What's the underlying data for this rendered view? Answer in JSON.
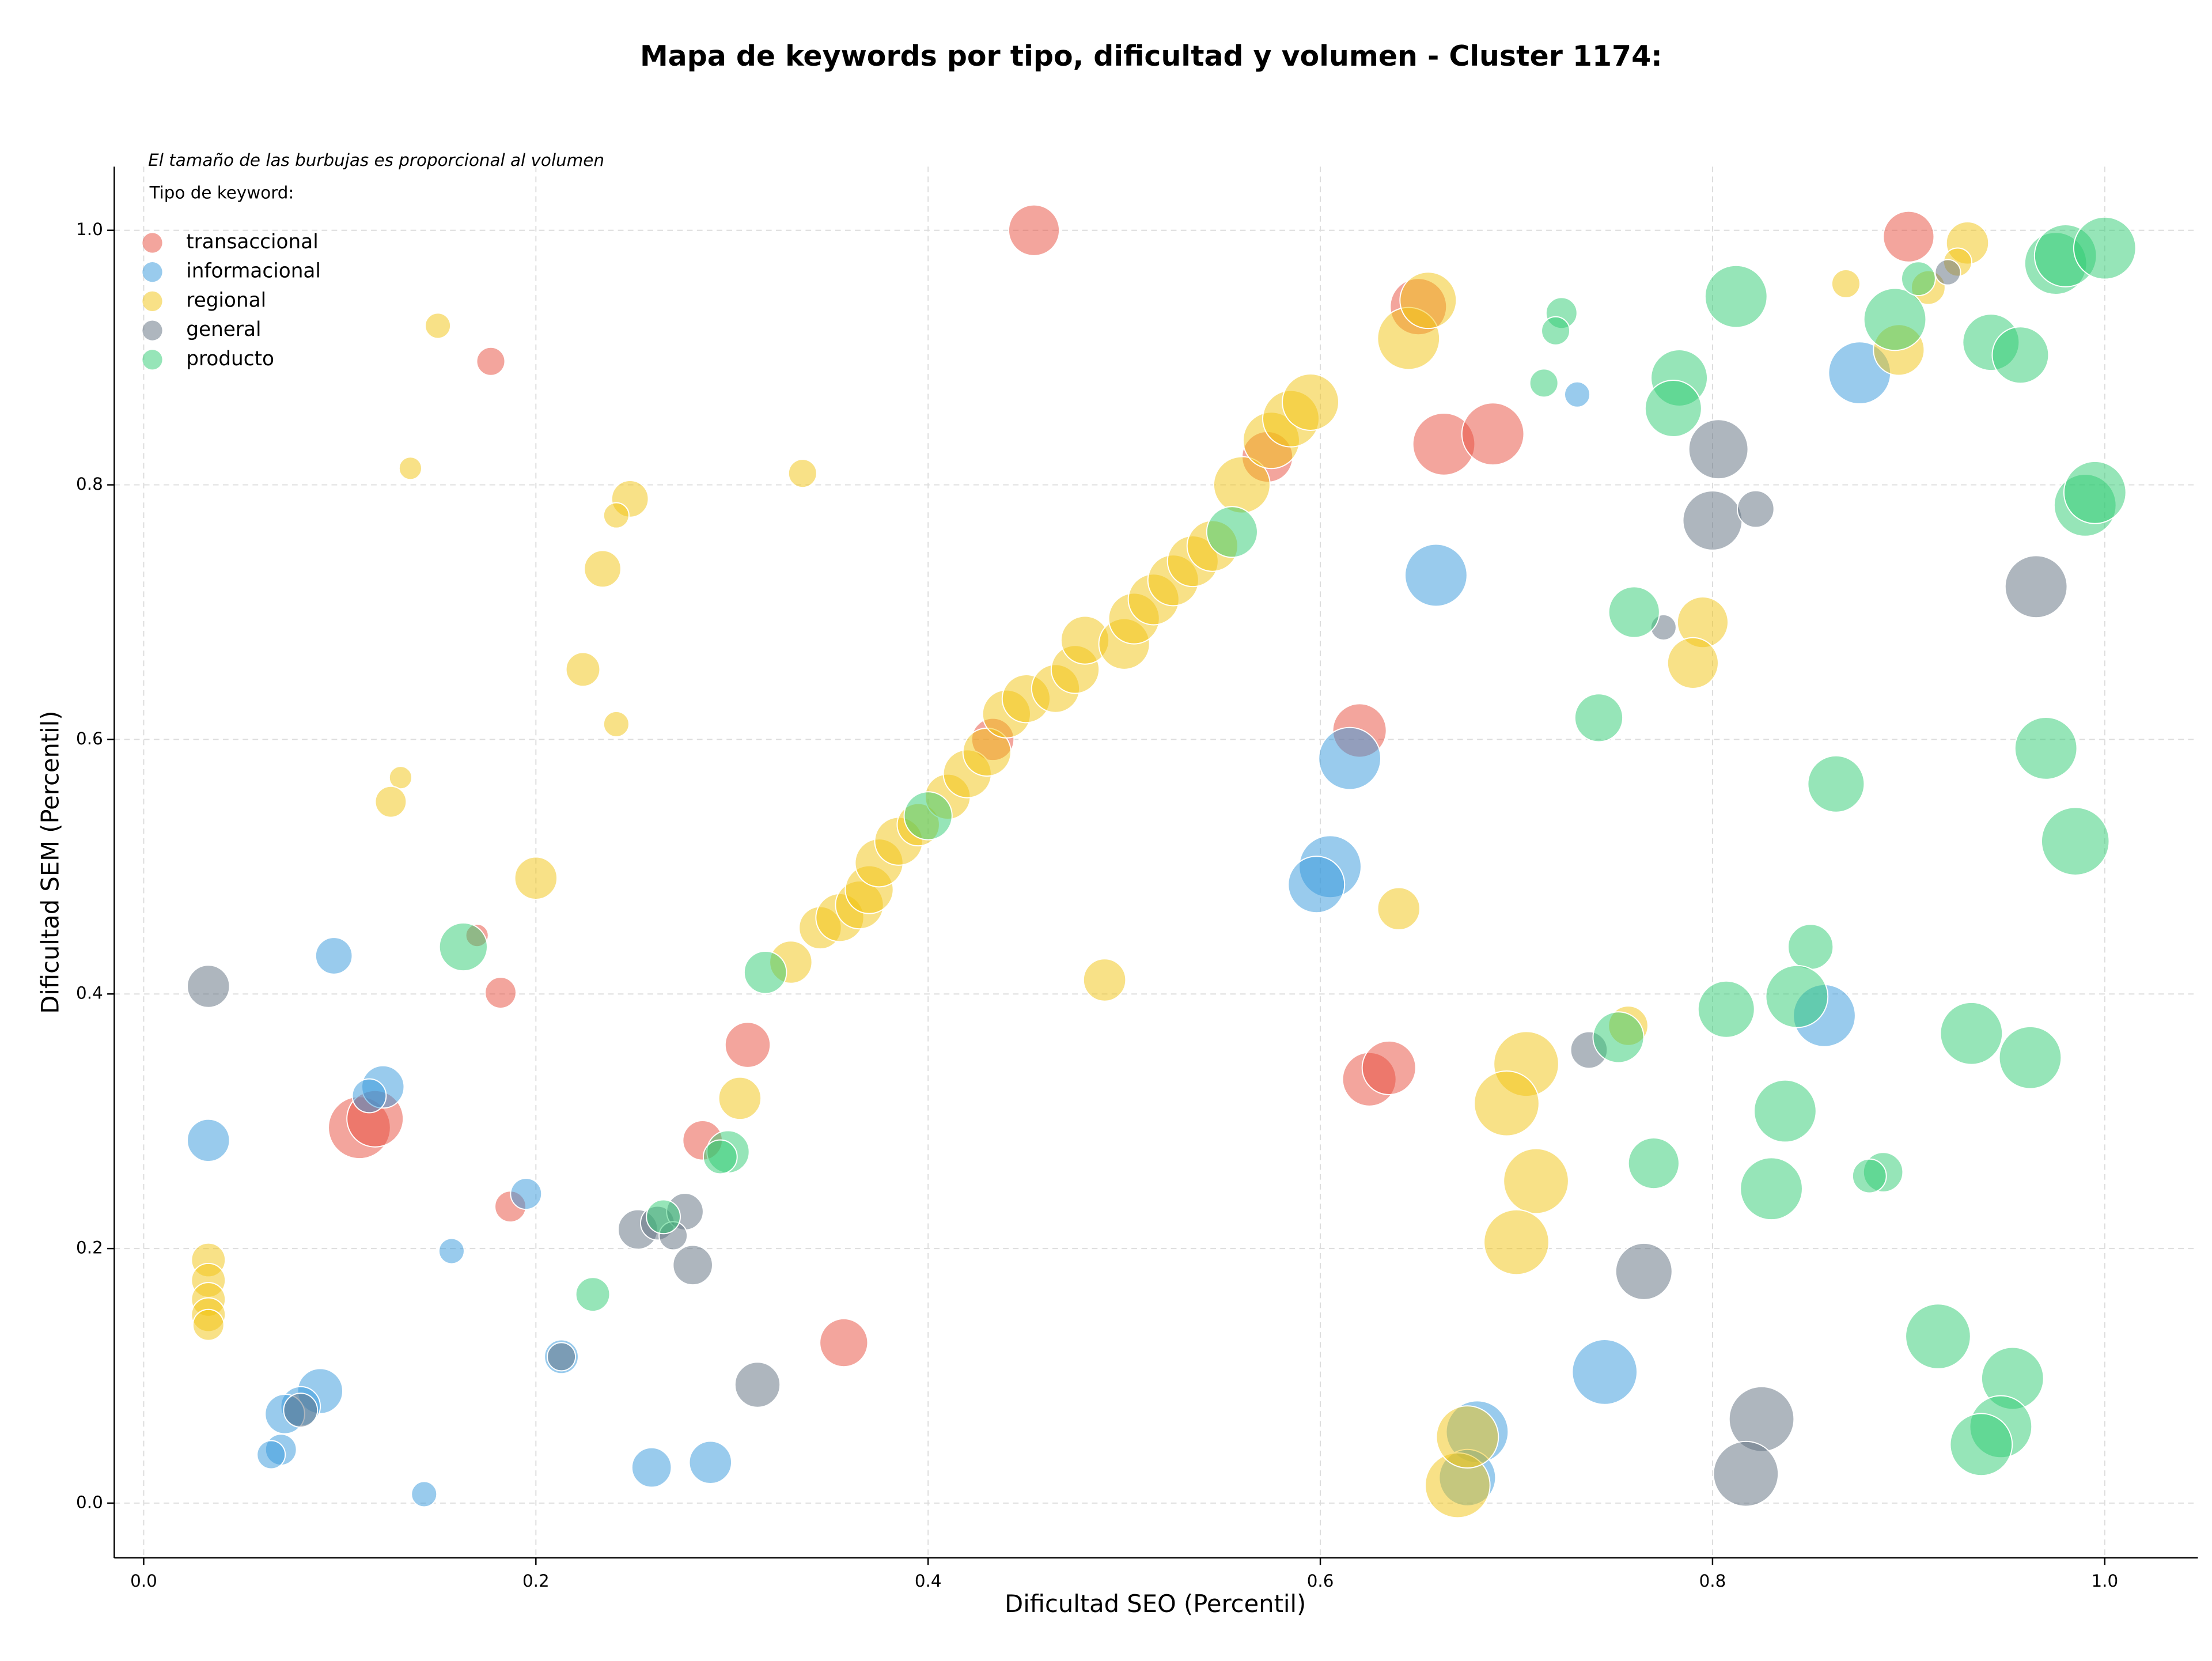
{
  "chart_data": {
    "type": "bubble",
    "title": "Mapa de keywords por tipo, dificultad y volumen - Cluster 1174:",
    "annotation": "El tamaño de las burbujas es proporcional al volumen",
    "legend_title": "Tipo de keyword:",
    "legend_position": "upper left",
    "x_label": "Dificultad SEO (Percentil)",
    "y_label": "Dificultad SEM (Percentil)",
    "xlim": [
      -0.015,
      1.0475
    ],
    "ylim": [
      -0.043,
      1.05
    ],
    "xticks": [
      {
        "value": 0,
        "label": "0.0"
      },
      0.2,
      0.4,
      0.6,
      0.8,
      {
        "value": 1,
        "label": "1.0"
      }
    ],
    "yticks": [
      {
        "value": 0,
        "label": "0.0"
      },
      0.2,
      0.4,
      0.6,
      0.8,
      {
        "value": 1,
        "label": "1.0"
      }
    ],
    "grid": true,
    "series": [
      {
        "name": "transaccional",
        "color": "#e74c3c",
        "x": [
          0.454,
          0.177,
          0.17,
          0.182,
          0.11,
          0.118,
          0.308,
          0.285,
          0.187,
          0.357,
          0.9,
          0.663,
          0.688,
          0.62,
          0.625,
          0.635,
          0.65,
          0.573,
          0.433
        ],
        "values": [
          1.0,
          0.897,
          0.446,
          0.401,
          0.295,
          0.302,
          0.36,
          0.285,
          0.233,
          0.126,
          0.995,
          0.832,
          0.84,
          0.607,
          0.333,
          0.342,
          0.94,
          0.822,
          0.6
        ],
        "sizes": [
          324,
          100,
          64,
          121,
          484,
          400,
          256,
          196,
          121,
          289,
          324,
          484,
          484,
          361,
          361,
          361,
          400,
          324,
          225
        ]
      },
      {
        "name": "informacional",
        "color": "#3498db",
        "x": [
          0.097,
          0.033,
          0.122,
          0.115,
          0.195,
          0.157,
          0.213,
          0.09,
          0.08,
          0.072,
          0.07,
          0.065,
          0.143,
          0.259,
          0.289,
          0.659,
          0.615,
          0.605,
          0.598,
          0.875,
          0.731,
          0.857,
          0.745,
          0.68,
          0.675
        ],
        "values": [
          0.43,
          0.285,
          0.327,
          0.32,
          0.243,
          0.198,
          0.115,
          0.088,
          0.076,
          0.07,
          0.042,
          0.038,
          0.007,
          0.028,
          0.032,
          0.729,
          0.585,
          0.5,
          0.486,
          0.888,
          0.871,
          0.383,
          0.103,
          0.056,
          0.02
        ],
        "sizes": [
          169,
          225,
          225,
          144,
          121,
          81,
          144,
          256,
          196,
          196,
          121,
          100,
          81,
          196,
          225,
          484,
          484,
          484,
          400,
          484,
          81,
          484,
          529,
          484,
          400
        ]
      },
      {
        "name": "regional",
        "color": "#f1c40f",
        "x": [
          0.15,
          0.136,
          0.248,
          0.241,
          0.234,
          0.336,
          0.224,
          0.241,
          0.131,
          0.126,
          0.2,
          0.033,
          0.033,
          0.033,
          0.033,
          0.033,
          0.304,
          0.49,
          0.64,
          0.33,
          0.345,
          0.355,
          0.365,
          0.37,
          0.375,
          0.385,
          0.395,
          0.41,
          0.42,
          0.43,
          0.44,
          0.45,
          0.465,
          0.475,
          0.48,
          0.5,
          0.505,
          0.515,
          0.525,
          0.535,
          0.545,
          0.56,
          0.575,
          0.585,
          0.595,
          0.645,
          0.655,
          0.705,
          0.695,
          0.71,
          0.7,
          0.67,
          0.675,
          0.795,
          0.79,
          0.757,
          0.868,
          0.93,
          0.925,
          0.91,
          0.895
        ],
        "values": [
          0.925,
          0.813,
          0.789,
          0.776,
          0.734,
          0.809,
          0.655,
          0.612,
          0.57,
          0.551,
          0.491,
          0.191,
          0.175,
          0.16,
          0.148,
          0.14,
          0.318,
          0.411,
          0.467,
          0.425,
          0.452,
          0.46,
          0.47,
          0.482,
          0.503,
          0.52,
          0.533,
          0.555,
          0.573,
          0.59,
          0.62,
          0.632,
          0.64,
          0.655,
          0.678,
          0.675,
          0.695,
          0.71,
          0.725,
          0.74,
          0.752,
          0.8,
          0.835,
          0.852,
          0.865,
          0.915,
          0.945,
          0.345,
          0.314,
          0.253,
          0.205,
          0.014,
          0.052,
          0.692,
          0.66,
          0.375,
          0.958,
          0.99,
          0.975,
          0.955,
          0.906
        ],
        "sizes": [
          81,
          64,
          169,
          81,
          169,
          100,
          144,
          81,
          64,
          121,
          225,
          144,
          144,
          144,
          144,
          121,
          225,
          225,
          225,
          225,
          225,
          289,
          289,
          289,
          289,
          289,
          225,
          256,
          289,
          289,
          289,
          289,
          289,
          289,
          289,
          324,
          324,
          324,
          324,
          324,
          324,
          400,
          400,
          400,
          400,
          484,
          400,
          529,
          529,
          529,
          529,
          529,
          484,
          324,
          324,
          196,
          100,
          225,
          100,
          144,
          324
        ]
      },
      {
        "name": "general",
        "color": "#5d6d7e",
        "x": [
          0.033,
          0.252,
          0.262,
          0.276,
          0.27,
          0.28,
          0.313,
          0.213,
          0.08,
          0.803,
          0.8,
          0.822,
          0.965,
          0.775,
          0.737,
          0.765,
          0.825,
          0.817,
          0.92
        ],
        "values": [
          0.406,
          0.215,
          0.22,
          0.229,
          0.21,
          0.187,
          0.093,
          0.115,
          0.073,
          0.828,
          0.772,
          0.781,
          0.72,
          0.688,
          0.356,
          0.182,
          0.066,
          0.023,
          0.967
        ],
        "sizes": [
          225,
          196,
          144,
          169,
          100,
          196,
          256,
          100,
          144,
          441,
          441,
          169,
          484,
          81,
          169,
          400,
          529,
          529,
          81
        ]
      },
      {
        "name": "producto",
        "color": "#2ecc71",
        "x": [
          0.163,
          0.317,
          0.298,
          0.294,
          0.265,
          0.229,
          0.4,
          0.555,
          0.723,
          0.72,
          0.714,
          0.783,
          0.78,
          0.812,
          0.76,
          0.742,
          0.752,
          0.77,
          0.807,
          0.85,
          0.843,
          0.837,
          0.83,
          0.863,
          0.887,
          0.88,
          0.893,
          0.905,
          0.942,
          0.957,
          0.975,
          0.98,
          1.0,
          0.99,
          0.995,
          0.97,
          0.985,
          0.932,
          0.962,
          0.915,
          0.953,
          0.947,
          0.937
        ],
        "values": [
          0.437,
          0.417,
          0.276,
          0.272,
          0.225,
          0.164,
          0.54,
          0.763,
          0.935,
          0.921,
          0.88,
          0.884,
          0.86,
          0.948,
          0.7,
          0.617,
          0.366,
          0.267,
          0.388,
          0.437,
          0.398,
          0.308,
          0.247,
          0.565,
          0.26,
          0.257,
          0.93,
          0.962,
          0.912,
          0.902,
          0.974,
          0.98,
          0.986,
          0.784,
          0.794,
          0.593,
          0.52,
          0.369,
          0.35,
          0.131,
          0.098,
          0.06,
          0.046
        ],
        "sizes": [
          289,
          225,
          225,
          144,
          144,
          144,
          289,
          324,
          121,
          100,
          100,
          400,
          400,
          484,
          324,
          289,
          324,
          324,
          400,
          256,
          484,
          484,
          484,
          400,
          196,
          144,
          484,
          144,
          400,
          400,
          484,
          484,
          484,
          484,
          484,
          484,
          576,
          484,
          484,
          529,
          484,
          484,
          484
        ]
      }
    ]
  }
}
